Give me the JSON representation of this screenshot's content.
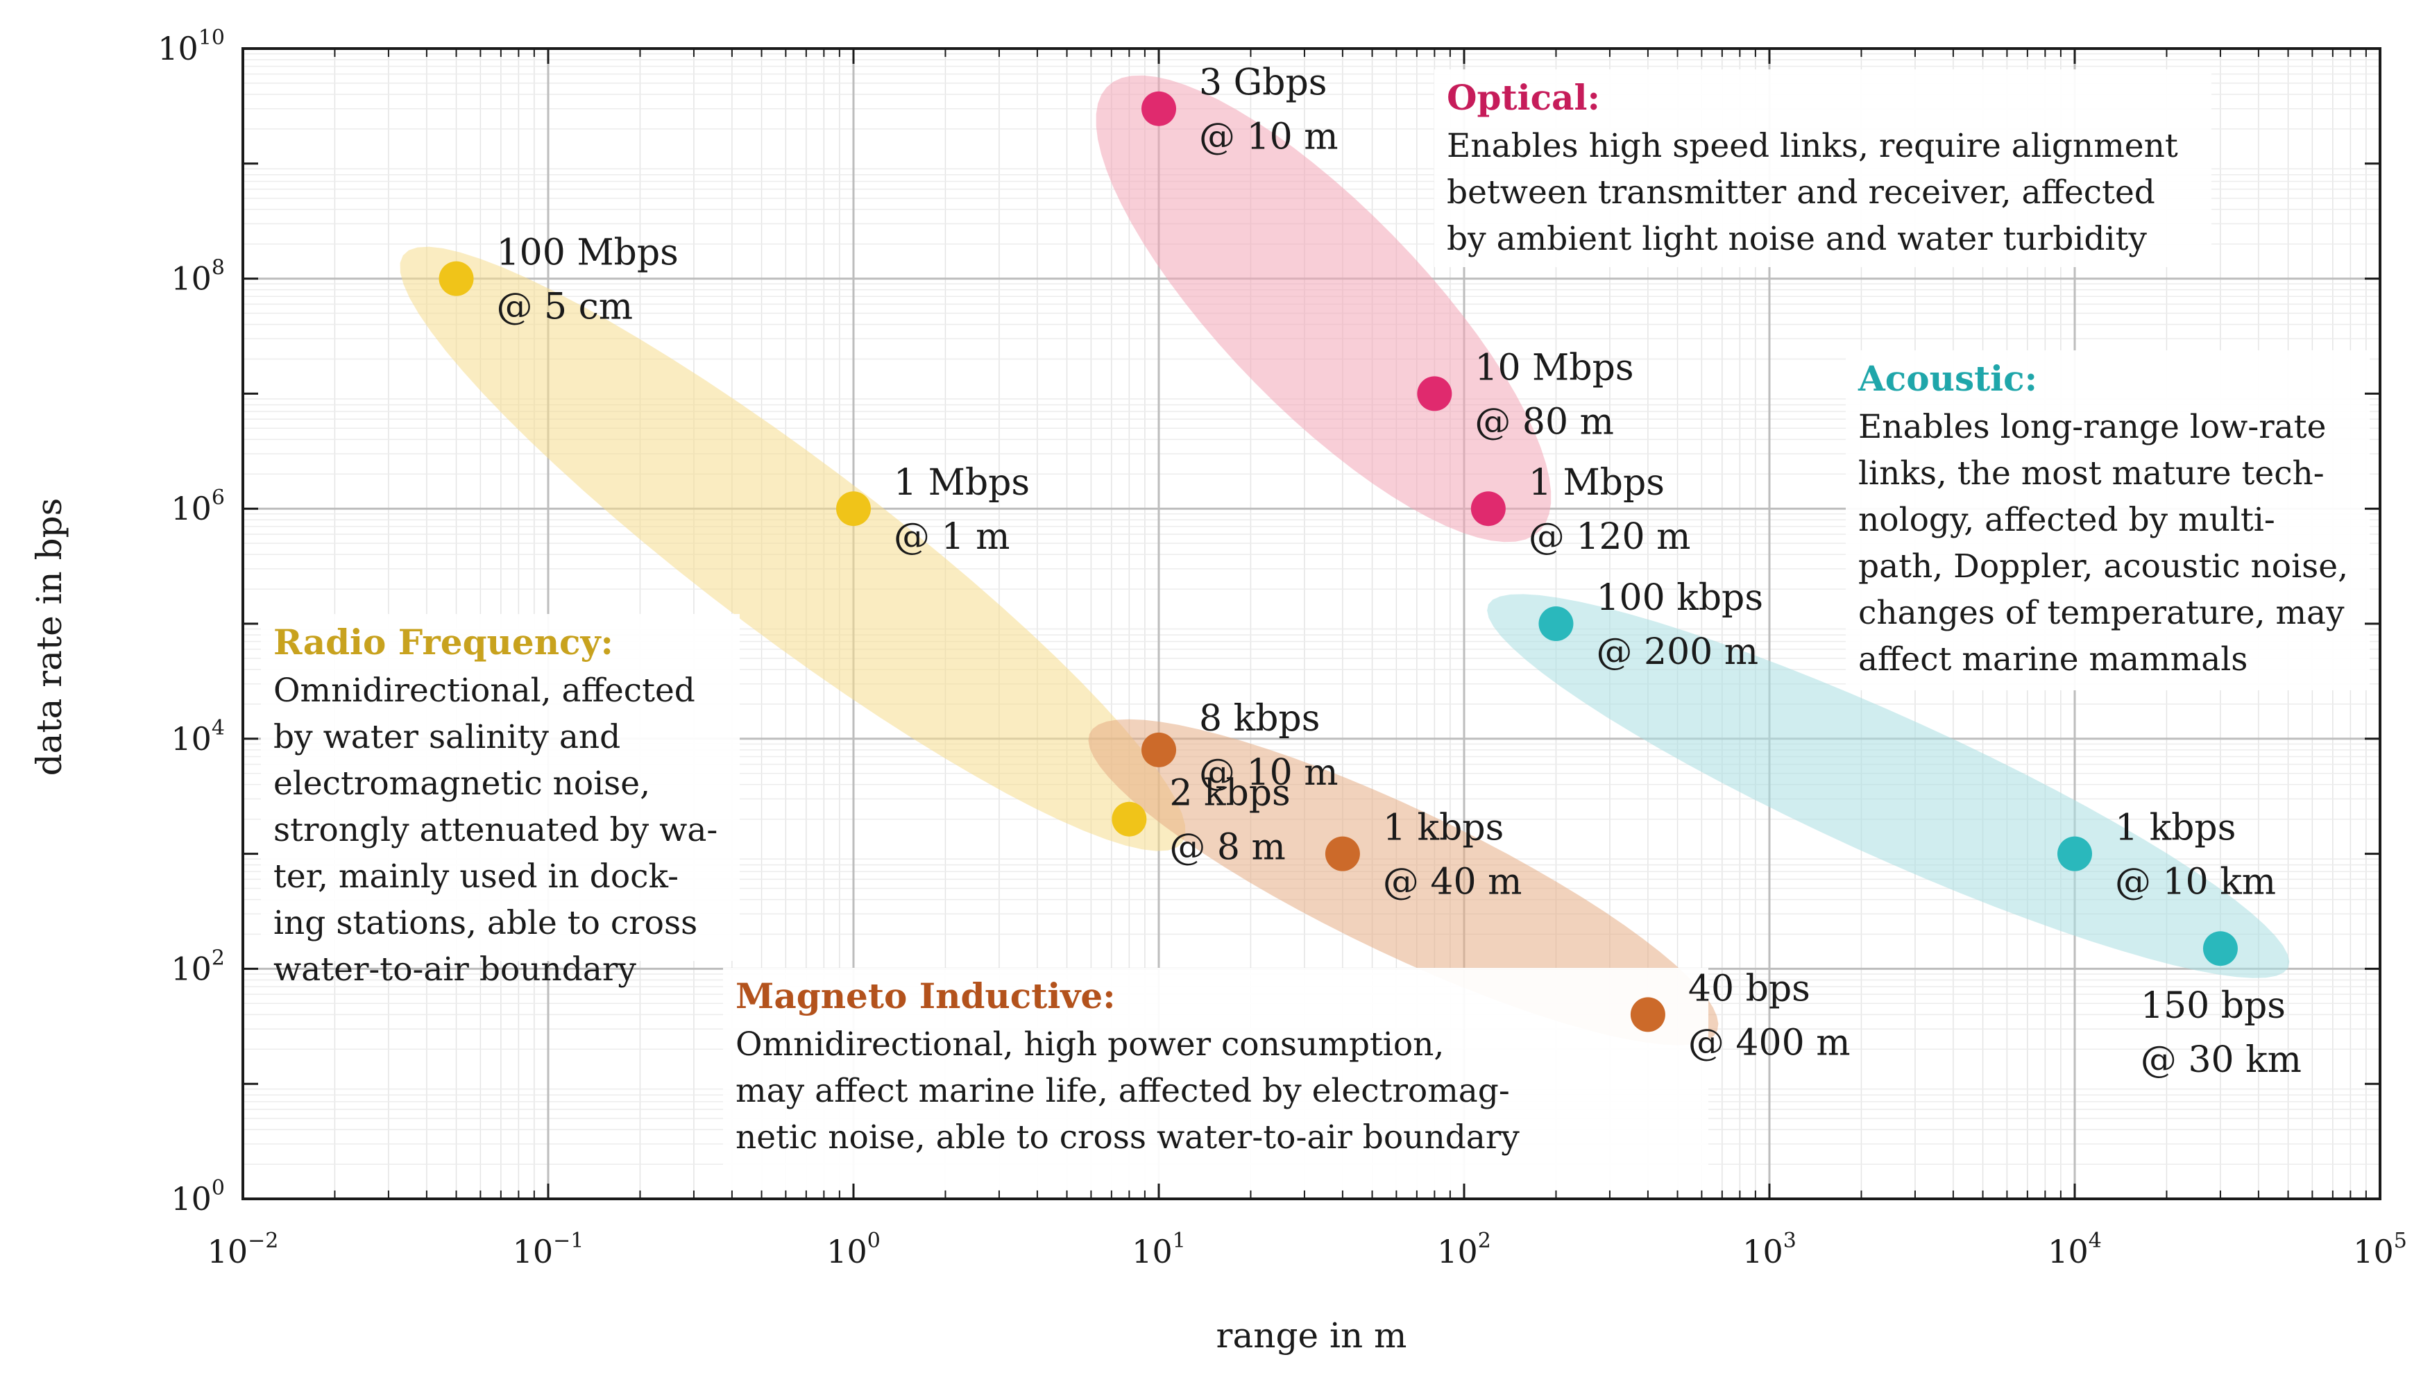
{
  "chart_data": {
    "type": "scatter",
    "x_scale": "log",
    "y_scale": "log",
    "xlabel": "range in m",
    "ylabel": "data rate in bps",
    "xlim": [
      0.01,
      100000
    ],
    "ylim": [
      1,
      10000000000
    ],
    "x_ticks": [
      {
        "base": "10",
        "exp": "−2",
        "value": 0.01
      },
      {
        "base": "10",
        "exp": "−1",
        "value": 0.1
      },
      {
        "base": "10",
        "exp": "0",
        "value": 1
      },
      {
        "base": "10",
        "exp": "1",
        "value": 10
      },
      {
        "base": "10",
        "exp": "2",
        "value": 100
      },
      {
        "base": "10",
        "exp": "3",
        "value": 1000
      },
      {
        "base": "10",
        "exp": "4",
        "value": 10000
      },
      {
        "base": "10",
        "exp": "5",
        "value": 100000
      }
    ],
    "y_ticks": [
      {
        "base": "10",
        "exp": "0",
        "value": 1
      },
      {
        "base": "10",
        "exp": "2",
        "value": 100
      },
      {
        "base": "10",
        "exp": "4",
        "value": 10000
      },
      {
        "base": "10",
        "exp": "6",
        "value": 1000000
      },
      {
        "base": "10",
        "exp": "8",
        "value": 100000000
      },
      {
        "base": "10",
        "exp": "10",
        "value": 10000000000
      }
    ],
    "grid": true,
    "series": [
      {
        "name": "Radio Frequency",
        "color": "#f0c419",
        "region_color": "#f6dc8e",
        "description_lines": [
          "Omnidirectional, affected",
          "by water salinity and",
          "electromagnetic noise,",
          "strongly attenuated by wa-",
          "ter, mainly used in dock-",
          "ing stations, able to cross",
          "water-to-air boundary"
        ],
        "points": [
          {
            "x": 0.05,
            "y": 100000000,
            "label1": "100 Mbps",
            "label2": "@ 5 cm"
          },
          {
            "x": 1,
            "y": 1000000,
            "label1": "1 Mbps",
            "label2": "@ 1 m"
          },
          {
            "x": 8,
            "y": 2000,
            "label1": "2 kbps",
            "label2": "@ 8 m"
          }
        ]
      },
      {
        "name": "Magneto Inductive",
        "color": "#cc6a2a",
        "region_color": "#e6ad85",
        "description_lines": [
          "Omnidirectional, high power consumption,",
          "may affect marine life, affected by electromag-",
          "netic noise, able to cross water-to-air boundary"
        ],
        "points": [
          {
            "x": 10,
            "y": 8000,
            "label1": "8 kbps",
            "label2": "@ 10 m"
          },
          {
            "x": 40,
            "y": 1000,
            "label1": "1 kbps",
            "label2": "@ 40 m"
          },
          {
            "x": 400,
            "y": 40,
            "label1": "40 bps",
            "label2": "@ 400 m"
          }
        ]
      },
      {
        "name": "Optical",
        "color": "#e02a6e",
        "region_color": "#f2a6b6",
        "description_lines": [
          "Enables high speed links, require alignment",
          "between transmitter and receiver, affected",
          "by ambient light noise and water turbidity"
        ],
        "points": [
          {
            "x": 10,
            "y": 3000000000,
            "label1": "3 Gbps",
            "label2": "@ 10 m"
          },
          {
            "x": 80,
            "y": 10000000,
            "label1": "10 Mbps",
            "label2": "@ 80 m"
          },
          {
            "x": 120,
            "y": 1000000,
            "label1": "1 Mbps",
            "label2": "@ 120 m"
          }
        ]
      },
      {
        "name": "Acoustic",
        "color": "#2ab8bc",
        "region_color": "#a9dfe2",
        "description_lines": [
          "Enables long-range low-rate",
          "links, the most mature tech-",
          "nology, affected by multi-",
          "path, Doppler, acoustic noise,",
          "changes of temperature, may",
          "affect marine mammals"
        ],
        "points": [
          {
            "x": 200,
            "y": 100000,
            "label1": "100 kbps",
            "label2": "@ 200 m"
          },
          {
            "x": 10000,
            "y": 1000,
            "label1": "1 kbps",
            "label2": "@ 10 km"
          },
          {
            "x": 30000,
            "y": 150,
            "label1": "150 bps",
            "label2": "@ 30 km"
          }
        ]
      }
    ]
  }
}
